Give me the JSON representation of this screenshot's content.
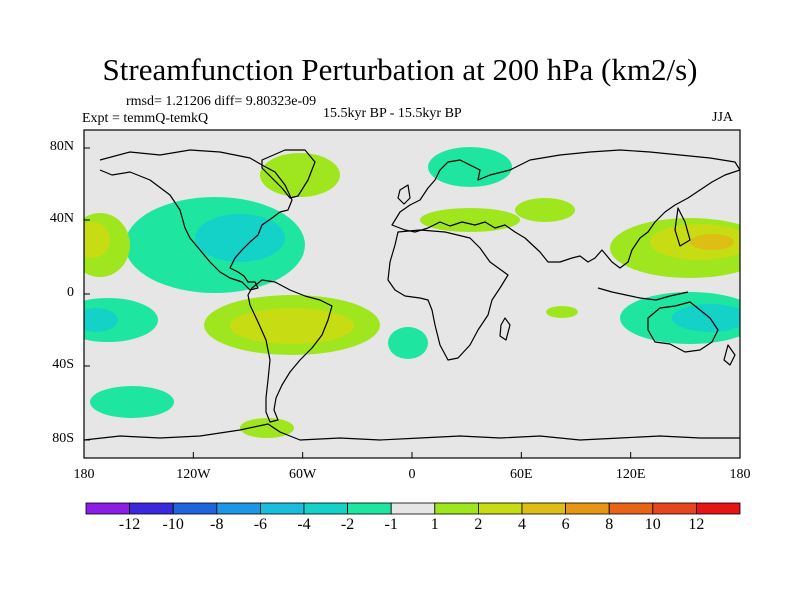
{
  "figure": {
    "title": "Streamfunction Perturbation at 200 hPa (km2/s)",
    "stats": "rmsd= 1.21206 diff= 9.80323e-09",
    "experiment": "Expt = temmQ-temkQ",
    "period": "15.5kyr BP - 15.5kyr BP",
    "season": "JJA"
  },
  "axes": {
    "y_ticks": [
      "80N",
      "40N",
      "0",
      "40S",
      "80S"
    ],
    "x_ticks": [
      "180",
      "120W",
      "60W",
      "0",
      "60E",
      "120E",
      "180"
    ]
  },
  "colorbar": {
    "labels": [
      "-12",
      "-10",
      "-8",
      "-6",
      "-4",
      "-2",
      "-1",
      "1",
      "2",
      "4",
      "6",
      "8",
      "10",
      "12"
    ],
    "colors": [
      "#8a1ee6",
      "#3c28dc",
      "#1e64dc",
      "#1e96e6",
      "#19bedc",
      "#14d2c8",
      "#1ee6a0",
      "#e6e6e6",
      "#a0e61e",
      "#c8dc14",
      "#dcbe14",
      "#e69614",
      "#e66414",
      "#e6461e",
      "#e61414"
    ]
  },
  "colors": {
    "land_bg": "#e6e6e6",
    "coast": "#000000"
  }
}
